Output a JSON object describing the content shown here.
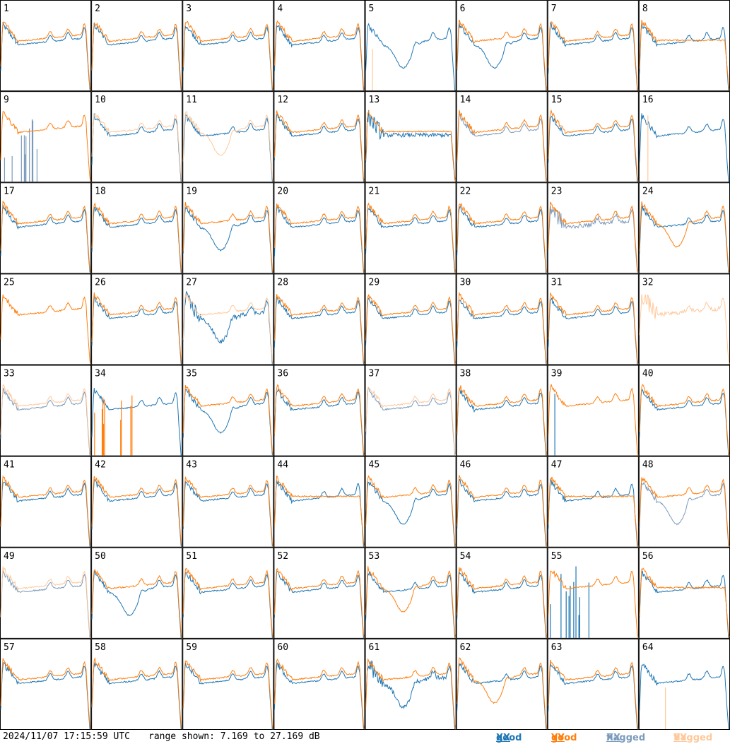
{
  "footer": {
    "timestamp": "2024/11/07 17:15:59 UTC",
    "range": "range shown: 7.169 to 27.169 dB"
  },
  "legend": [
    {
      "word": "good",
      "pol": "XX",
      "color": "#1f77b4"
    },
    {
      "word": "good",
      "pol": "YY",
      "color": "#ff7f0e"
    },
    {
      "word": "flagged",
      "pol": "XX",
      "color": "#7b9bbd"
    },
    {
      "word": "flagged",
      "pol": "YY",
      "color": "#ffc89a"
    }
  ],
  "colors": {
    "good_xx": "#1f77b4",
    "good_yy": "#ff7f0e",
    "flagged_xx": "#7b9bbd",
    "flagged_yy": "#ffc89a"
  },
  "chart_data": {
    "type": "line",
    "grid": "8x8 small multiples",
    "ylim": [
      7.169,
      27.169
    ],
    "unit": "dB",
    "panels": [
      {
        "n": 1,
        "xx": "normal",
        "yy": "normal",
        "dy": 0.35,
        "dx": 0.35
      },
      {
        "n": 2,
        "xx": "normal",
        "yy": "normal"
      },
      {
        "n": 3,
        "xx": "normal",
        "yy": "normal"
      },
      {
        "n": 4,
        "xx": "normal",
        "yy": "normal"
      },
      {
        "n": 5,
        "xx": "dip",
        "yy": "flagged-spike"
      },
      {
        "n": 6,
        "xx": "dip",
        "yy": "normal"
      },
      {
        "n": 7,
        "xx": "normal",
        "yy": "normal"
      },
      {
        "n": 8,
        "xx": "normal",
        "yy": "flat"
      },
      {
        "n": 9,
        "xx": "flagged-spikes",
        "yy": "normal"
      },
      {
        "n": 10,
        "xx": "normal",
        "yy": "flagged-normal"
      },
      {
        "n": 11,
        "xx": "normal",
        "yy": "flagged-dip"
      },
      {
        "n": 12,
        "xx": "normal",
        "yy": "normal"
      },
      {
        "n": 13,
        "xx": "flat-noisy",
        "yy": "flat"
      },
      {
        "n": 14,
        "xx": "normal-gray",
        "yy": "normal"
      },
      {
        "n": 15,
        "xx": "normal",
        "yy": "normal"
      },
      {
        "n": 16,
        "xx": "normal",
        "yy": "flagged-spike"
      },
      {
        "n": 17,
        "xx": "normal",
        "yy": "normal"
      },
      {
        "n": 18,
        "xx": "normal",
        "yy": "normal"
      },
      {
        "n": 19,
        "xx": "dip",
        "yy": "normal"
      },
      {
        "n": 20,
        "xx": "normal",
        "yy": "normal"
      },
      {
        "n": 21,
        "xx": "normal",
        "yy": "normal"
      },
      {
        "n": 22,
        "xx": "normal",
        "yy": "normal"
      },
      {
        "n": 23,
        "xx": "flagged-noise",
        "yy": "normal"
      },
      {
        "n": 24,
        "xx": "normal",
        "yy": "dip"
      },
      {
        "n": 25,
        "xx": "hidden",
        "yy": "normal"
      },
      {
        "n": 26,
        "xx": "normal",
        "yy": "normal"
      },
      {
        "n": 27,
        "xx": "dip-noisy",
        "yy": "flagged-normal"
      },
      {
        "n": 28,
        "xx": "normal",
        "yy": "normal"
      },
      {
        "n": 29,
        "xx": "normal",
        "yy": "normal"
      },
      {
        "n": 30,
        "xx": "normal",
        "yy": "normal"
      },
      {
        "n": 31,
        "xx": "normal",
        "yy": "normal"
      },
      {
        "n": 32,
        "xx": "none",
        "yy": "flagged-noise"
      },
      {
        "n": 33,
        "xx": "flagged-normal",
        "yy": "flagged-normal"
      },
      {
        "n": 34,
        "xx": "normal",
        "yy": "spikes"
      },
      {
        "n": 35,
        "xx": "dip",
        "yy": "normal"
      },
      {
        "n": 36,
        "xx": "normal",
        "yy": "normal"
      },
      {
        "n": 37,
        "xx": "flagged-normal",
        "yy": "flagged-normal"
      },
      {
        "n": 38,
        "xx": "normal",
        "yy": "normal"
      },
      {
        "n": 39,
        "xx": "spike",
        "yy": "normal"
      },
      {
        "n": 40,
        "xx": "normal",
        "yy": "normal"
      },
      {
        "n": 41,
        "xx": "normal",
        "yy": "normal"
      },
      {
        "n": 42,
        "xx": "normal",
        "yy": "normal"
      },
      {
        "n": 43,
        "xx": "normal",
        "yy": "normal"
      },
      {
        "n": 44,
        "xx": "normal",
        "yy": "flat"
      },
      {
        "n": 45,
        "xx": "dip",
        "yy": "normal"
      },
      {
        "n": 46,
        "xx": "normal",
        "yy": "normal"
      },
      {
        "n": 47,
        "xx": "normal",
        "yy": "flat"
      },
      {
        "n": 48,
        "xx": "flagged-dip",
        "yy": "normal"
      },
      {
        "n": 49,
        "xx": "flagged-normal",
        "yy": "flagged-normal"
      },
      {
        "n": 50,
        "xx": "dip",
        "yy": "normal"
      },
      {
        "n": 51,
        "xx": "normal",
        "yy": "normal"
      },
      {
        "n": 52,
        "xx": "normal",
        "yy": "normal"
      },
      {
        "n": 53,
        "xx": "normal",
        "yy": "dip"
      },
      {
        "n": 54,
        "xx": "normal",
        "yy": "normal"
      },
      {
        "n": 55,
        "xx": "spikes",
        "yy": "normal"
      },
      {
        "n": 56,
        "xx": "normal",
        "yy": "flat"
      },
      {
        "n": 57,
        "xx": "normal",
        "yy": "normal"
      },
      {
        "n": 58,
        "xx": "normal",
        "yy": "normal"
      },
      {
        "n": 59,
        "xx": "normal",
        "yy": "normal"
      },
      {
        "n": 60,
        "xx": "normal",
        "yy": "normal"
      },
      {
        "n": 61,
        "xx": "dip-noisy",
        "yy": "normal"
      },
      {
        "n": 62,
        "xx": "normal",
        "yy": "dip"
      },
      {
        "n": 63,
        "xx": "normal",
        "yy": "normal"
      },
      {
        "n": 64,
        "xx": "normal",
        "yy": "flagged-spike"
      }
    ]
  }
}
